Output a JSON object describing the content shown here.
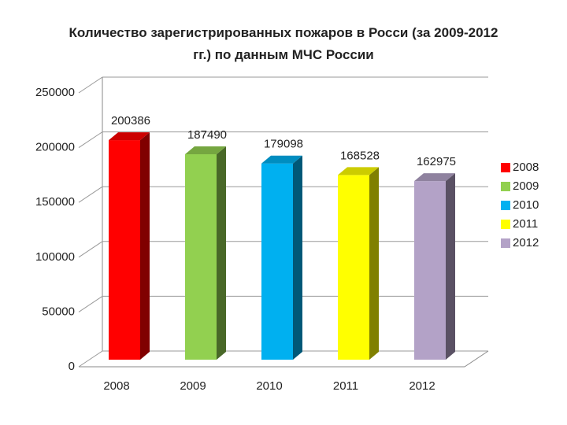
{
  "chart_data": {
    "type": "bar3d",
    "title": "Количество зарегистрированных пожаров в Росси (за 2009-2012 гг.) по данным МЧС России",
    "categories": [
      "2008",
      "2009",
      "2010",
      "2011",
      "2012"
    ],
    "values": [
      200386,
      187490,
      179098,
      168528,
      162975
    ],
    "colors": [
      "#ff0000",
      "#92d050",
      "#00b0f0",
      "#ffff00",
      "#b3a2c7"
    ],
    "ylim": [
      0,
      250000
    ],
    "yticks": [
      0,
      50000,
      100000,
      150000,
      200000,
      250000
    ],
    "grid": true,
    "legend": "right"
  }
}
